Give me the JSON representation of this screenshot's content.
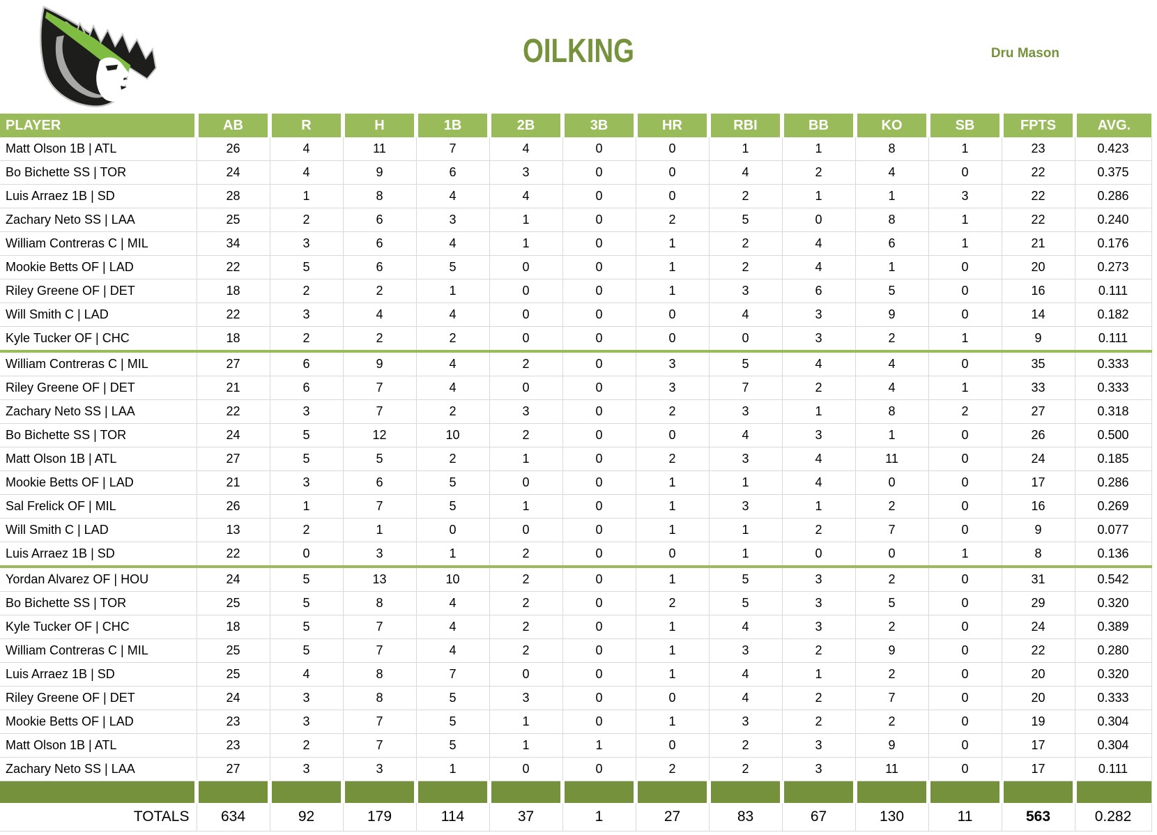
{
  "header": {
    "title": "OILKING",
    "owner": "Dru Mason",
    "logo_icon": "oil-king-crown-logo"
  },
  "colors": {
    "header_green": "#9ABB59",
    "bar_green": "#75913B",
    "separator_green": "#9ABB59",
    "accent_text_green": "#76923C",
    "gridline_gray": "#D9D9D9",
    "logo_bright_green": "#7EBC42",
    "logo_black": "#1D1D1B",
    "logo_gray": "#A8A8A8"
  },
  "table": {
    "columns": [
      "PLAYER",
      "AB",
      "R",
      "H",
      "1B",
      "2B",
      "3B",
      "HR",
      "RBI",
      "BB",
      "KO",
      "SB",
      "FPTS",
      "AVG."
    ],
    "groups": [
      {
        "rows": [
          {
            "player": "Matt Olson 1B | ATL",
            "values": [
              26,
              4,
              11,
              7,
              4,
              0,
              0,
              1,
              1,
              8,
              1,
              23,
              "0.423"
            ]
          },
          {
            "player": "Bo Bichette SS | TOR",
            "values": [
              24,
              4,
              9,
              6,
              3,
              0,
              0,
              4,
              2,
              4,
              0,
              22,
              "0.375"
            ]
          },
          {
            "player": "Luis Arraez 1B | SD",
            "values": [
              28,
              1,
              8,
              4,
              4,
              0,
              0,
              2,
              1,
              1,
              3,
              22,
              "0.286"
            ]
          },
          {
            "player": "Zachary Neto SS | LAA",
            "values": [
              25,
              2,
              6,
              3,
              1,
              0,
              2,
              5,
              0,
              8,
              1,
              22,
              "0.240"
            ]
          },
          {
            "player": "William Contreras C | MIL",
            "values": [
              34,
              3,
              6,
              4,
              1,
              0,
              1,
              2,
              4,
              6,
              1,
              21,
              "0.176"
            ]
          },
          {
            "player": "Mookie Betts OF | LAD",
            "values": [
              22,
              5,
              6,
              5,
              0,
              0,
              1,
              2,
              4,
              1,
              0,
              20,
              "0.273"
            ]
          },
          {
            "player": "Riley Greene OF | DET",
            "values": [
              18,
              2,
              2,
              1,
              0,
              0,
              1,
              3,
              6,
              5,
              0,
              16,
              "0.111"
            ]
          },
          {
            "player": "Will Smith C | LAD",
            "values": [
              22,
              3,
              4,
              4,
              0,
              0,
              0,
              4,
              3,
              9,
              0,
              14,
              "0.182"
            ]
          },
          {
            "player": "Kyle Tucker OF | CHC",
            "values": [
              18,
              2,
              2,
              2,
              0,
              0,
              0,
              0,
              3,
              2,
              1,
              9,
              "0.111"
            ]
          }
        ]
      },
      {
        "rows": [
          {
            "player": "William Contreras C | MIL",
            "values": [
              27,
              6,
              9,
              4,
              2,
              0,
              3,
              5,
              4,
              4,
              0,
              35,
              "0.333"
            ]
          },
          {
            "player": "Riley Greene OF | DET",
            "values": [
              21,
              6,
              7,
              4,
              0,
              0,
              3,
              7,
              2,
              4,
              1,
              33,
              "0.333"
            ]
          },
          {
            "player": "Zachary Neto SS | LAA",
            "values": [
              22,
              3,
              7,
              2,
              3,
              0,
              2,
              3,
              1,
              8,
              2,
              27,
              "0.318"
            ]
          },
          {
            "player": "Bo Bichette SS | TOR",
            "values": [
              24,
              5,
              12,
              10,
              2,
              0,
              0,
              4,
              3,
              1,
              0,
              26,
              "0.500"
            ]
          },
          {
            "player": "Matt Olson 1B | ATL",
            "values": [
              27,
              5,
              5,
              2,
              1,
              0,
              2,
              3,
              4,
              11,
              0,
              24,
              "0.185"
            ]
          },
          {
            "player": "Mookie Betts OF | LAD",
            "values": [
              21,
              3,
              6,
              5,
              0,
              0,
              1,
              1,
              4,
              0,
              0,
              17,
              "0.286"
            ]
          },
          {
            "player": "Sal Frelick OF | MIL",
            "values": [
              26,
              1,
              7,
              5,
              1,
              0,
              1,
              3,
              1,
              2,
              0,
              16,
              "0.269"
            ]
          },
          {
            "player": "Will Smith C | LAD",
            "values": [
              13,
              2,
              1,
              0,
              0,
              0,
              1,
              1,
              2,
              7,
              0,
              9,
              "0.077"
            ]
          },
          {
            "player": "Luis Arraez 1B | SD",
            "values": [
              22,
              0,
              3,
              1,
              2,
              0,
              0,
              1,
              0,
              0,
              1,
              8,
              "0.136"
            ]
          }
        ]
      },
      {
        "rows": [
          {
            "player": "Yordan Alvarez OF | HOU",
            "values": [
              24,
              5,
              13,
              10,
              2,
              0,
              1,
              5,
              3,
              2,
              0,
              31,
              "0.542"
            ]
          },
          {
            "player": "Bo Bichette SS | TOR",
            "values": [
              25,
              5,
              8,
              4,
              2,
              0,
              2,
              5,
              3,
              5,
              0,
              29,
              "0.320"
            ]
          },
          {
            "player": "Kyle Tucker OF | CHC",
            "values": [
              18,
              5,
              7,
              4,
              2,
              0,
              1,
              4,
              3,
              2,
              0,
              24,
              "0.389"
            ]
          },
          {
            "player": "William Contreras C | MIL",
            "values": [
              25,
              5,
              7,
              4,
              2,
              0,
              1,
              3,
              2,
              9,
              0,
              22,
              "0.280"
            ]
          },
          {
            "player": "Luis Arraez 1B | SD",
            "values": [
              25,
              4,
              8,
              7,
              0,
              0,
              1,
              4,
              1,
              2,
              0,
              20,
              "0.320"
            ]
          },
          {
            "player": "Riley Greene OF | DET",
            "values": [
              24,
              3,
              8,
              5,
              3,
              0,
              0,
              4,
              2,
              7,
              0,
              20,
              "0.333"
            ]
          },
          {
            "player": "Mookie Betts OF | LAD",
            "values": [
              23,
              3,
              7,
              5,
              1,
              0,
              1,
              3,
              2,
              2,
              0,
              19,
              "0.304"
            ]
          },
          {
            "player": "Matt Olson 1B | ATL",
            "values": [
              23,
              2,
              7,
              5,
              1,
              1,
              0,
              2,
              3,
              9,
              0,
              17,
              "0.304"
            ]
          },
          {
            "player": "Zachary Neto SS | LAA",
            "values": [
              27,
              3,
              3,
              1,
              0,
              0,
              2,
              2,
              3,
              11,
              0,
              17,
              "0.111"
            ]
          }
        ]
      }
    ],
    "totals": {
      "label": "TOTALS",
      "values": [
        "634",
        "92",
        "179",
        "114",
        "37",
        "1",
        "27",
        "83",
        "67",
        "130",
        "11",
        "563",
        "0.282"
      ],
      "bold_value_index": 11
    }
  }
}
